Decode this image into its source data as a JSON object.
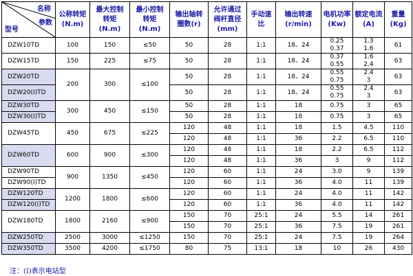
{
  "header": {
    "corner_name": "名称",
    "corner_param": "参数",
    "corner_model": "型号",
    "columns": [
      "公称转矩\n(N.m)",
      "最大控制\n转矩\n(N.m)",
      "最小控制\n转矩\n(N.m)",
      "输出轴转\n圈数(r)",
      "允许通过\n阀杆直径\n(mm)",
      "手动速\n比",
      "输出转速\n(r/min)",
      "电机功率\n(Kw)",
      "额定电流\n(A)",
      "重量\n(Kg)"
    ]
  },
  "rows": [
    [
      "DZW10TD",
      "100",
      "150",
      "≤50",
      "50",
      "28",
      "1:1",
      "18、24",
      "0.25\n0.37",
      "1.3\n1.6",
      "61"
    ],
    [
      "DZW15TD",
      "150",
      "225",
      "≤75",
      "50",
      "28",
      "1:1",
      "18、24",
      "0.37\n0.55",
      "1.6\n2.4",
      "63"
    ],
    [
      "DZW20TD",
      "200",
      "300",
      "≤100",
      "50",
      "28",
      "1:1",
      "18、24",
      "0.55\n0.75",
      "2.4\n3",
      "63"
    ],
    [
      "DZW20(I)TD",
      "",
      "",
      "",
      "50",
      "28",
      "1:1",
      "18、24",
      "0.55\n0.75",
      "2.4\n3",
      "63"
    ],
    [
      "DZW30TD",
      "300",
      "450",
      "≤150",
      "50",
      "28",
      "1:1",
      "18",
      "0.75",
      "3",
      "65"
    ],
    [
      "DZW30(I)TD",
      "",
      "",
      "",
      "50",
      "28",
      "1:1",
      "18",
      "0.75",
      "3",
      "65"
    ],
    [
      "DZW45TD",
      "450",
      "675",
      "≤225",
      "120",
      "48",
      "1:1",
      "18",
      "1.5",
      "4.5",
      "110"
    ],
    [
      "",
      "",
      "",
      "",
      "120",
      "48",
      "1:1",
      "36",
      "2.2",
      "6.5",
      "110"
    ],
    [
      "DZW60TD",
      "600",
      "900",
      "≤300",
      "120",
      "48",
      "1:1",
      "18",
      "2.2",
      "6.5",
      "112"
    ],
    [
      "",
      "",
      "",
      "",
      "120",
      "48",
      "1:1",
      "36",
      "3",
      "9",
      "112"
    ],
    [
      "DZW90TD",
      "900",
      "1350",
      "≤450",
      "120",
      "60",
      "1:1",
      "24",
      "3.0",
      "9",
      "139"
    ],
    [
      "DZW90(I)TD",
      "",
      "",
      "",
      "120",
      "60",
      "1:1",
      "36",
      "4.0",
      "11",
      "139"
    ],
    [
      "DZW120TD",
      "1200",
      "1800",
      "≤600",
      "120",
      "60",
      "1:1",
      "24",
      "4.0",
      "11",
      "142"
    ],
    [
      "DZW120(I)TD",
      "",
      "",
      "",
      "120",
      "60",
      "1:1",
      "36",
      "4.0",
      "11",
      "142"
    ],
    [
      "DZW180TD",
      "1800",
      "2160",
      "≤900",
      "150",
      "70",
      "25:1",
      "24",
      "5.5",
      "14",
      "261"
    ],
    [
      "",
      "",
      "",
      "",
      "150",
      "70",
      "25:1",
      "36",
      "7.5",
      "19",
      "261"
    ],
    [
      "DZW250TD",
      "2500",
      "3000",
      "≤1250",
      "150",
      "70",
      "25:1",
      "24",
      "7.5",
      "19",
      "264"
    ],
    [
      "DZW350TD",
      "3500",
      "4200",
      "≤1750",
      "80",
      "75",
      "13:1",
      "18",
      "10",
      "26",
      "430"
    ]
  ],
  "footnote": "注：(I)表示电站型"
}
